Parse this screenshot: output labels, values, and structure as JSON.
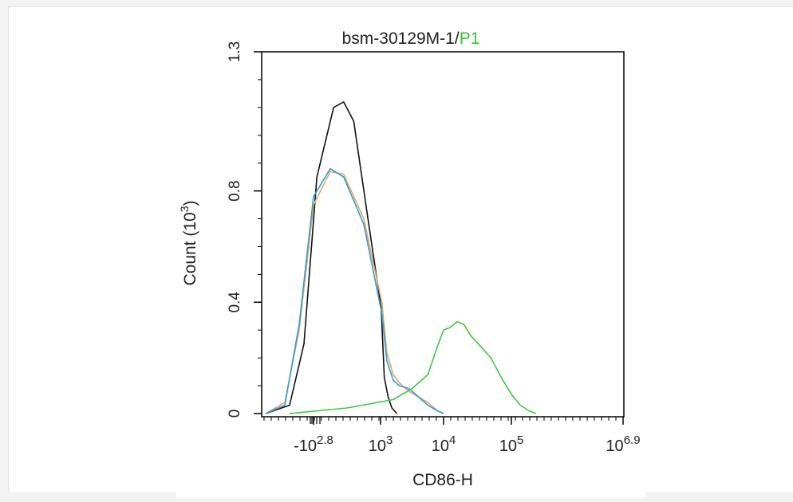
{
  "chart_data": {
    "type": "line",
    "title_prefix": "bsm-30129M-1/",
    "title_gate": "P1",
    "xlabel": "CD86-H",
    "ylabel_text": "Count (10",
    "ylabel_exp": "3",
    "ylabel_close": ")",
    "ylim": [
      0,
      1.3
    ],
    "xlim_log": [
      2.8,
      6.9
    ],
    "y_ticks": [
      {
        "value": 0,
        "label": "0"
      },
      {
        "value": 0.4,
        "label": "0.4"
      },
      {
        "value": 0.8,
        "label": "0.8"
      },
      {
        "value": 1.3,
        "label": "1.3"
      }
    ],
    "x_tick_labels": [
      {
        "value": 2.8,
        "base": "-10",
        "exp": "2.8"
      },
      {
        "value": 3,
        "base": "10",
        "exp": "3"
      },
      {
        "value": 4,
        "base": "10",
        "exp": "4"
      },
      {
        "value": 5,
        "base": "10",
        "exp": "5"
      },
      {
        "value": 6.9,
        "base": "10",
        "exp": "6.9"
      }
    ],
    "series": [
      {
        "color": "#111111",
        "points": [
          [
            2.6,
            0
          ],
          [
            2.7,
            0.03
          ],
          [
            2.76,
            0.25
          ],
          [
            2.81,
            0.85
          ],
          [
            2.86,
            1.1
          ],
          [
            2.89,
            1.12
          ],
          [
            2.92,
            1.05
          ],
          [
            2.96,
            0.72
          ],
          [
            3.01,
            0.38
          ],
          [
            3.06,
            0.13
          ],
          [
            3.12,
            0.06
          ],
          [
            3.18,
            0.02
          ],
          [
            3.26,
            0
          ]
        ]
      },
      {
        "color": "#f0a060",
        "points": [
          [
            2.6,
            0
          ],
          [
            2.68,
            0.04
          ],
          [
            2.74,
            0.3
          ],
          [
            2.8,
            0.75
          ],
          [
            2.85,
            0.87
          ],
          [
            2.89,
            0.86
          ],
          [
            2.95,
            0.7
          ],
          [
            3.02,
            0.4
          ],
          [
            3.1,
            0.22
          ],
          [
            3.2,
            0.14
          ],
          [
            3.3,
            0.11
          ],
          [
            3.45,
            0.08
          ],
          [
            3.6,
            0.06
          ],
          [
            3.75,
            0.04
          ],
          [
            3.9,
            0.01
          ],
          [
            4.0,
            0
          ]
        ]
      },
      {
        "color": "#2aa0d8",
        "points": [
          [
            2.6,
            0
          ],
          [
            2.68,
            0.03
          ],
          [
            2.74,
            0.32
          ],
          [
            2.8,
            0.78
          ],
          [
            2.85,
            0.88
          ],
          [
            2.89,
            0.85
          ],
          [
            2.95,
            0.68
          ],
          [
            3.02,
            0.36
          ],
          [
            3.1,
            0.19
          ],
          [
            3.2,
            0.12
          ],
          [
            3.3,
            0.1
          ],
          [
            3.45,
            0.09
          ],
          [
            3.6,
            0.06
          ],
          [
            3.75,
            0.03
          ],
          [
            3.9,
            0.01
          ],
          [
            4.0,
            0
          ]
        ]
      },
      {
        "color": "#3ec83e",
        "points": [
          [
            2.7,
            0
          ],
          [
            2.9,
            0.02
          ],
          [
            3.2,
            0.05
          ],
          [
            3.5,
            0.09
          ],
          [
            3.75,
            0.14
          ],
          [
            3.9,
            0.24
          ],
          [
            4.0,
            0.3
          ],
          [
            4.1,
            0.31
          ],
          [
            4.2,
            0.33
          ],
          [
            4.3,
            0.32
          ],
          [
            4.4,
            0.28
          ],
          [
            4.55,
            0.24
          ],
          [
            4.7,
            0.2
          ],
          [
            4.85,
            0.13
          ],
          [
            5.0,
            0.07
          ],
          [
            5.15,
            0.03
          ],
          [
            5.3,
            0.01
          ],
          [
            5.42,
            0
          ]
        ]
      }
    ]
  }
}
